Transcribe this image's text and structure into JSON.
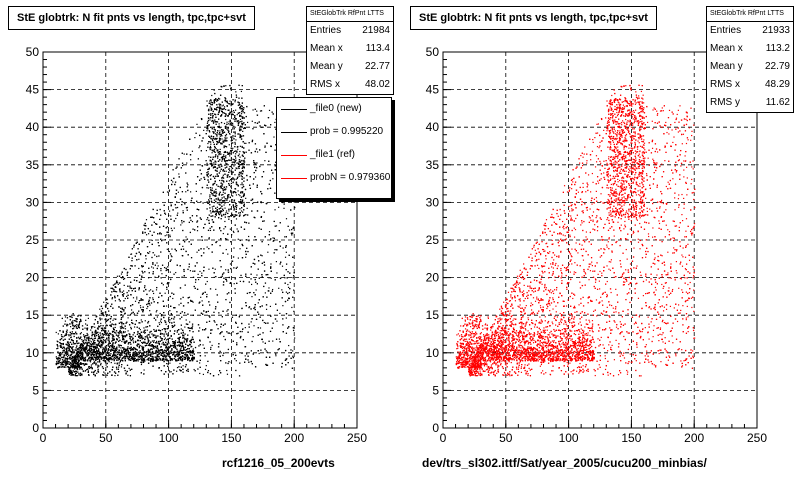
{
  "panels": [
    {
      "title": "StE globtrk: N fit pnts vs length, tpc,tpc+svt",
      "stats_header": "StEGlobTrk RfPnt LTTS",
      "stats": [
        {
          "label": "Entries",
          "value": "21984"
        },
        {
          "label": "Mean x",
          "value": "113.4"
        },
        {
          "label": "Mean y",
          "value": "22.77"
        },
        {
          "label": "RMS x",
          "value": "48.02"
        }
      ],
      "xcaption": "rcf1216_05_200evts",
      "color": "#000000"
    },
    {
      "title": "StE globtrk: N fit pnts vs length, tpc,tpc+svt",
      "stats_header": "StEGlobTrk RfPnt LTTS",
      "stats": [
        {
          "label": "Entries",
          "value": "21933"
        },
        {
          "label": "Mean x",
          "value": "113.2"
        },
        {
          "label": "Mean y",
          "value": "22.79"
        },
        {
          "label": "RMS x",
          "value": "48.29"
        },
        {
          "label": "RMS y",
          "value": "11.62"
        }
      ],
      "xcaption": "dev/trs_sl302.ittf/Sat/year_2005/cucu200_minbias/",
      "color": "#ff0000"
    }
  ],
  "legend": [
    {
      "label": "_file0 (new)",
      "color": "#000000"
    },
    {
      "label": "prob = 0.995220",
      "color": "#000000"
    },
    {
      "label": "_file1 (ref)",
      "color": "#ff0000"
    },
    {
      "label": "probN = 0.979360",
      "color": "#ff0000"
    }
  ],
  "footer": "",
  "chart_data": [
    {
      "type": "scatter",
      "title": "StE globtrk: N fit pnts vs length, tpc,tpc+svt",
      "xlabel": "rcf1216_05_200evts",
      "ylabel": "",
      "xlim": [
        0,
        250
      ],
      "ylim": [
        0,
        50
      ],
      "xticks": [
        0,
        50,
        100,
        150,
        200,
        250
      ],
      "yticks": [
        0,
        5,
        10,
        15,
        20,
        25,
        30,
        35,
        40,
        45,
        50
      ],
      "grid": true,
      "series": [
        {
          "name": "_file0 (new)",
          "color": "#000000",
          "entries": 21984,
          "mean_x": 113.4,
          "mean_y": 22.77,
          "rms_x": 48.02
        }
      ]
    },
    {
      "type": "scatter",
      "title": "StE globtrk: N fit pnts vs length, tpc,tpc+svt",
      "xlabel": "dev/trs_sl302.ittf/Sat/year_2005/cucu200_minbias/",
      "ylabel": "",
      "xlim": [
        0,
        250
      ],
      "ylim": [
        0,
        50
      ],
      "xticks": [
        0,
        50,
        100,
        150,
        200,
        250
      ],
      "yticks": [
        0,
        5,
        10,
        15,
        20,
        25,
        30,
        35,
        40,
        45,
        50
      ],
      "grid": true,
      "series": [
        {
          "name": "_file1 (ref)",
          "color": "#ff0000",
          "entries": 21933,
          "mean_x": 113.2,
          "mean_y": 22.79,
          "rms_x": 48.29,
          "rms_y": 11.62
        }
      ]
    }
  ]
}
